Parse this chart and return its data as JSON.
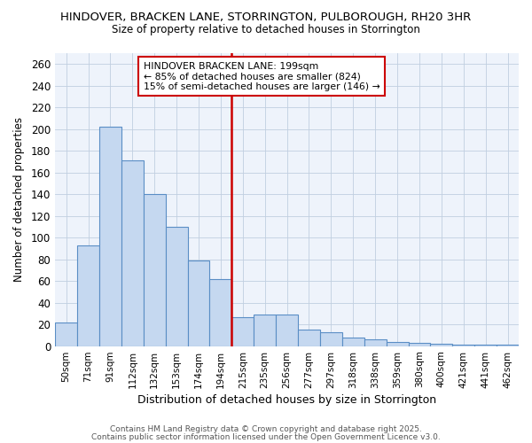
{
  "title1": "HINDOVER, BRACKEN LANE, STORRINGTON, PULBOROUGH, RH20 3HR",
  "title2": "Size of property relative to detached houses in Storrington",
  "xlabel": "Distribution of detached houses by size in Storrington",
  "ylabel": "Number of detached properties",
  "categories": [
    "50sqm",
    "71sqm",
    "91sqm",
    "112sqm",
    "132sqm",
    "153sqm",
    "174sqm",
    "194sqm",
    "215sqm",
    "235sqm",
    "256sqm",
    "277sqm",
    "297sqm",
    "318sqm",
    "338sqm",
    "359sqm",
    "380sqm",
    "400sqm",
    "421sqm",
    "441sqm",
    "462sqm"
  ],
  "values": [
    22,
    93,
    202,
    171,
    140,
    110,
    79,
    62,
    27,
    29,
    29,
    15,
    13,
    8,
    6,
    4,
    3,
    2,
    1,
    1,
    1
  ],
  "bar_color": "#c5d8f0",
  "bar_edge_color": "#5a8ec5",
  "vline_color": "#cc0000",
  "vline_pos": 7.5,
  "annotation_title": "HINDOVER BRACKEN LANE: 199sqm",
  "annotation_line1": "← 85% of detached houses are smaller (824)",
  "annotation_line2": "15% of semi-detached houses are larger (146) →",
  "annotation_box_color": "#cc0000",
  "annotation_fill": "#ffffff",
  "ylim": [
    0,
    270
  ],
  "yticks": [
    0,
    20,
    40,
    60,
    80,
    100,
    120,
    140,
    160,
    180,
    200,
    220,
    240,
    260
  ],
  "footer1": "Contains HM Land Registry data © Crown copyright and database right 2025.",
  "footer2": "Contains public sector information licensed under the Open Government Licence v3.0.",
  "bg_color": "#ffffff",
  "plot_bg": "#eef3fb",
  "grid_color": "#c0cfe0"
}
